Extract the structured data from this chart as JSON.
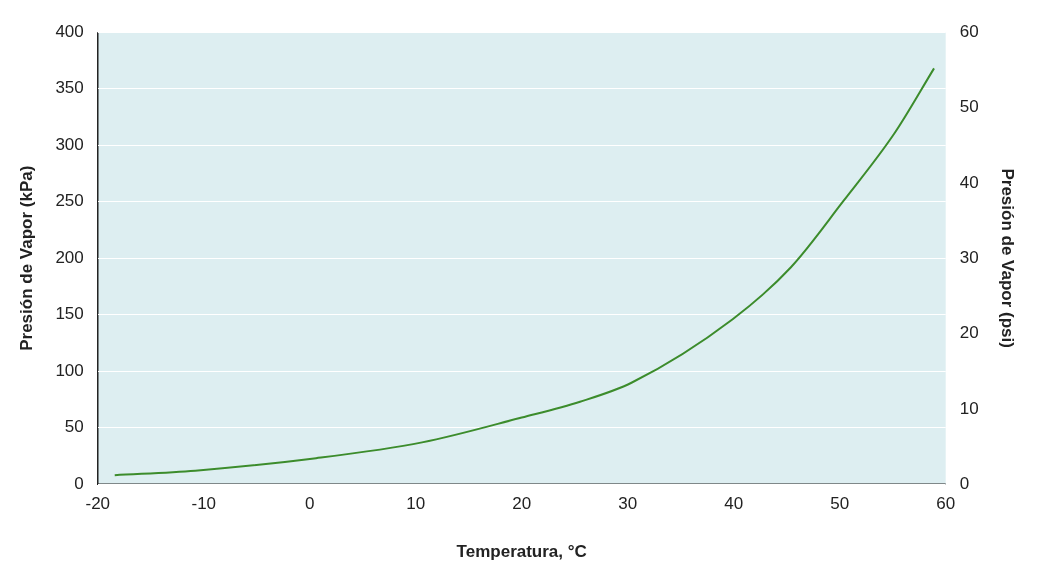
{
  "chart_data": {
    "type": "line",
    "xlabel": "Temperatura, °C",
    "ylabel": "Presión de Vapor (kPa)",
    "y2label": "Presión de Vapor (psi)",
    "x": [
      -18.4,
      -10.8,
      0.6,
      10.6,
      20,
      25.5,
      30.4,
      39.9,
      45.4,
      50.3,
      55.2,
      58.9
    ],
    "series": [
      {
        "color": "#3c8c2c",
        "values": [
          8,
          12,
          23,
          37,
          59,
          73,
          90,
          146,
          192,
          250,
          311,
          368
        ]
      }
    ],
    "xlim": [
      -20,
      60
    ],
    "xticks": [
      -20,
      -10,
      0,
      10,
      20,
      30,
      40,
      50,
      60
    ],
    "ylim": [
      0,
      400
    ],
    "yticks": [
      0,
      50,
      100,
      150,
      200,
      250,
      300,
      350,
      400
    ],
    "y2lim": [
      0,
      60
    ],
    "y2ticks": [
      0,
      10,
      20,
      30,
      40,
      50,
      60
    ],
    "grid": "y",
    "legend": false,
    "marker": "none",
    "line_style": "solid"
  }
}
